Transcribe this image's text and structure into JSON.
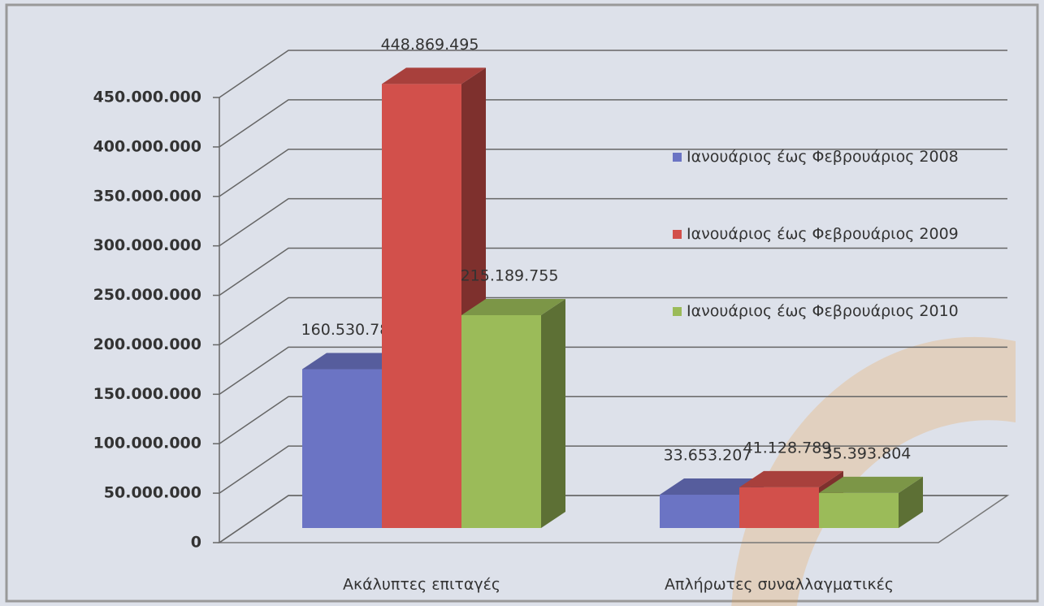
{
  "chart_data": {
    "type": "bar3d",
    "categories": [
      "Ακάλυπτες επιταγές",
      "Απλήρωτες συναλλαγματικές"
    ],
    "series": [
      {
        "name": "Ιανουάριος έως Φεβρουάριος 2008",
        "color": "#6b74c4",
        "values": [
          160530782,
          33653207
        ],
        "value_labels": [
          "160.530.782",
          "33.653.207"
        ]
      },
      {
        "name": "Ιανουάριος έως Φεβρουάριος 2009",
        "color": "#d2504b",
        "values": [
          448869495,
          41128789
        ],
        "value_labels": [
          "448.869.495",
          "41.128.789"
        ]
      },
      {
        "name": "Ιανουάριος έως Φεβρουάριος 2010",
        "color": "#9bbb59",
        "values": [
          215189755,
          35393804
        ],
        "value_labels": [
          "215.189.755",
          "35.393.804"
        ]
      }
    ],
    "ylim": [
      0,
      450000000
    ],
    "yticks": [
      0,
      {
        "value": 50000000,
        "label": "50.000.000"
      },
      {
        "value": 100000000,
        "label": "100.000.000"
      },
      {
        "value": 150000000,
        "label": "150.000.000"
      },
      {
        "value": 200000000,
        "label": "200.000.000"
      },
      {
        "value": 250000000,
        "label": "250.000.000"
      },
      {
        "value": 300000000,
        "label": "300.000.000"
      },
      {
        "value": 350000000,
        "label": "350.000.000"
      },
      {
        "value": 400000000,
        "label": "400.000.000"
      },
      {
        "value": 450000000,
        "label": "450.000.000"
      }
    ],
    "grid": true,
    "legend": "right"
  }
}
